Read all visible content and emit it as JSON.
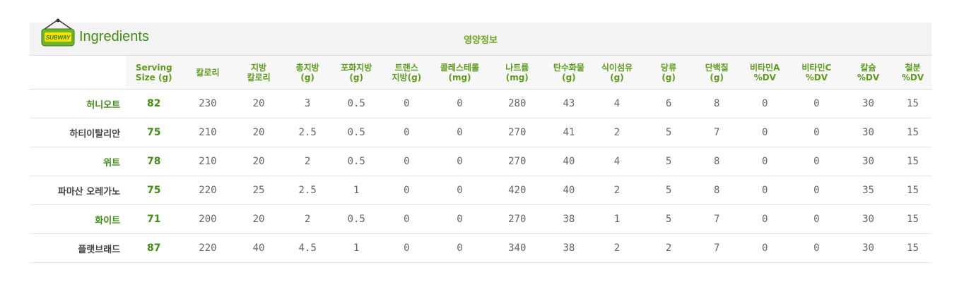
{
  "header": {
    "title": "Ingredients",
    "center_title": "영양정보",
    "logo_text": "SUBWAY"
  },
  "colors": {
    "brand_green": "#3f8f14",
    "header_green": "#5d9c1b"
  },
  "columns": [
    "Serving\nSize (g)",
    "칼로리",
    "지방\n칼로리",
    "총지방\n(g)",
    "포화지방\n(g)",
    "트랜스\n지방(g)",
    "콜레스테롤\n(mg)",
    "나트륨\n(mg)",
    "탄수화물\n(g)",
    "식이섬유\n(g)",
    "당류\n(g)",
    "단백질\n(g)",
    "비타민A\n%DV",
    "비타민C\n%DV",
    "칼슘\n%DV",
    "철분\n%DV"
  ],
  "rows": [
    {
      "name": "허니오트",
      "highlight": true,
      "values": [
        "82",
        "230",
        "20",
        "3",
        "0.5",
        "0",
        "0",
        "280",
        "43",
        "4",
        "6",
        "8",
        "0",
        "0",
        "30",
        "15"
      ]
    },
    {
      "name": "하티이탈리안",
      "highlight": false,
      "values": [
        "75",
        "210",
        "20",
        "2.5",
        "0.5",
        "0",
        "0",
        "270",
        "41",
        "2",
        "5",
        "7",
        "0",
        "0",
        "30",
        "15"
      ]
    },
    {
      "name": "위트",
      "highlight": true,
      "values": [
        "78",
        "210",
        "20",
        "2",
        "0.5",
        "0",
        "0",
        "270",
        "40",
        "4",
        "5",
        "8",
        "0",
        "0",
        "30",
        "15"
      ]
    },
    {
      "name": "파마산 오레가노",
      "highlight": false,
      "values": [
        "75",
        "220",
        "25",
        "2.5",
        "1",
        "0",
        "0",
        "420",
        "40",
        "2",
        "5",
        "8",
        "0",
        "0",
        "35",
        "15"
      ]
    },
    {
      "name": "화이트",
      "highlight": true,
      "values": [
        "71",
        "200",
        "20",
        "2",
        "0.5",
        "0",
        "0",
        "270",
        "38",
        "1",
        "5",
        "7",
        "0",
        "0",
        "30",
        "15"
      ]
    },
    {
      "name": "플랫브래드",
      "highlight": false,
      "values": [
        "87",
        "220",
        "40",
        "4.5",
        "1",
        "0",
        "0",
        "340",
        "38",
        "2",
        "2",
        "7",
        "0",
        "0",
        "30",
        "15"
      ]
    }
  ]
}
